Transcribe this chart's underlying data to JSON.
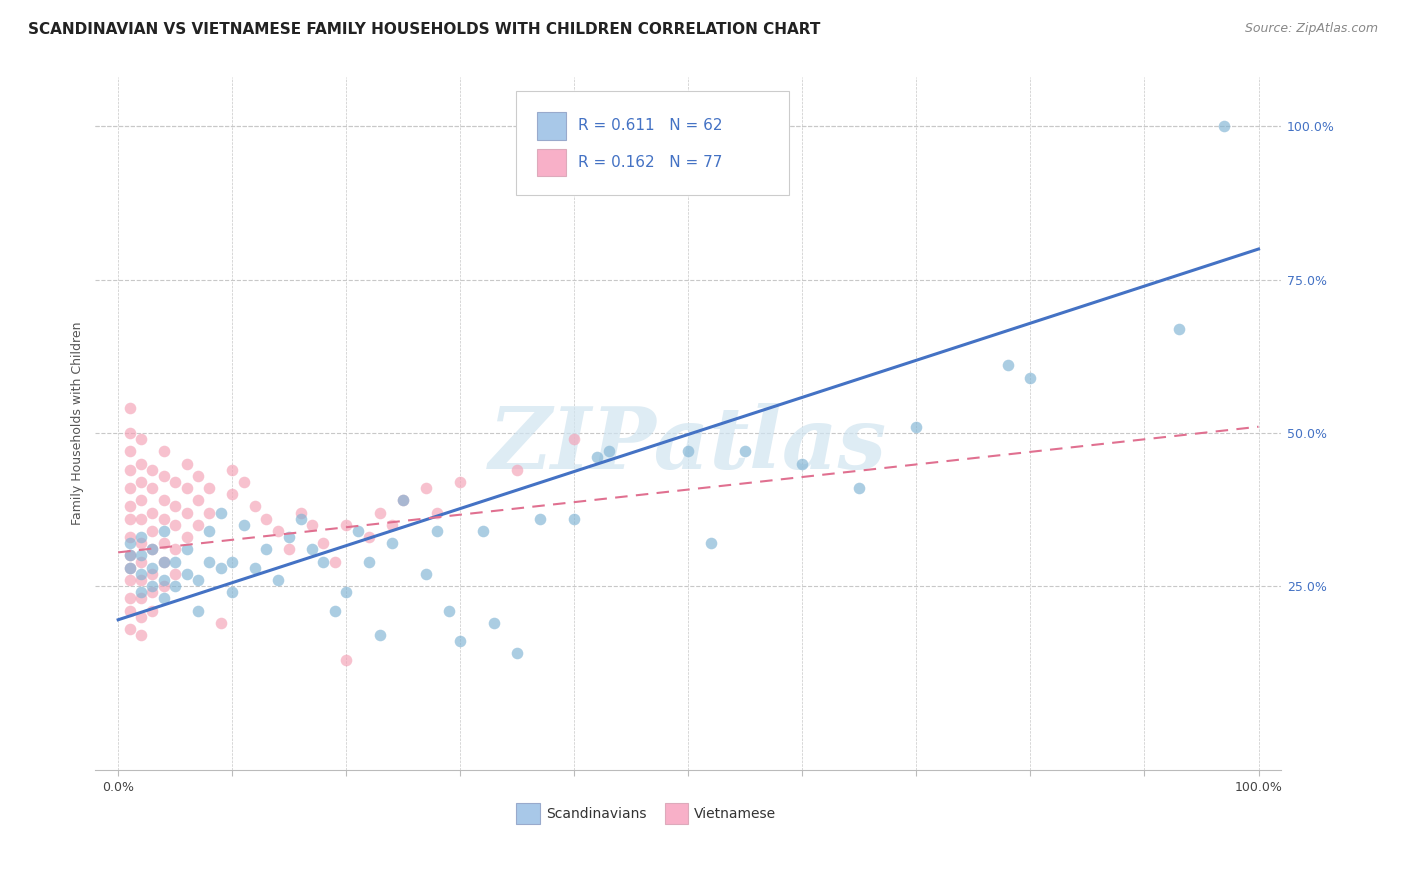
{
  "title": "SCANDINAVIAN VS VIETNAMESE FAMILY HOUSEHOLDS WITH CHILDREN CORRELATION CHART",
  "source": "Source: ZipAtlas.com",
  "ylabel": "Family Households with Children",
  "xlim": [
    -0.02,
    1.02
  ],
  "ylim": [
    -0.05,
    1.08
  ],
  "xtick_vals": [
    0.0,
    0.1,
    0.2,
    0.3,
    0.4,
    0.5,
    0.6,
    0.7,
    0.8,
    0.9,
    1.0
  ],
  "xtick_labels_sparse": {
    "0.0": "0.0%",
    "0.5": "",
    "1.0": "100.0%"
  },
  "ytick_vals": [
    0.25,
    0.5,
    0.75,
    1.0
  ],
  "ytick_labels": [
    "25.0%",
    "50.0%",
    "75.0%",
    "100.0%"
  ],
  "scand_color": "#7fb3d3",
  "viet_color": "#f4a0b5",
  "scand_line_color": "#4472c4",
  "viet_line_color": "#e07090",
  "watermark": "ZIPatlas",
  "background_color": "#ffffff",
  "grid_color": "#c8c8c8",
  "scand_scatter": [
    [
      0.01,
      0.28
    ],
    [
      0.01,
      0.3
    ],
    [
      0.01,
      0.32
    ],
    [
      0.02,
      0.24
    ],
    [
      0.02,
      0.27
    ],
    [
      0.02,
      0.3
    ],
    [
      0.02,
      0.33
    ],
    [
      0.03,
      0.25
    ],
    [
      0.03,
      0.28
    ],
    [
      0.03,
      0.31
    ],
    [
      0.04,
      0.23
    ],
    [
      0.04,
      0.26
    ],
    [
      0.04,
      0.29
    ],
    [
      0.04,
      0.34
    ],
    [
      0.05,
      0.25
    ],
    [
      0.05,
      0.29
    ],
    [
      0.06,
      0.27
    ],
    [
      0.06,
      0.31
    ],
    [
      0.07,
      0.21
    ],
    [
      0.07,
      0.26
    ],
    [
      0.08,
      0.29
    ],
    [
      0.08,
      0.34
    ],
    [
      0.09,
      0.28
    ],
    [
      0.09,
      0.37
    ],
    [
      0.1,
      0.24
    ],
    [
      0.1,
      0.29
    ],
    [
      0.11,
      0.35
    ],
    [
      0.12,
      0.28
    ],
    [
      0.13,
      0.31
    ],
    [
      0.14,
      0.26
    ],
    [
      0.15,
      0.33
    ],
    [
      0.16,
      0.36
    ],
    [
      0.17,
      0.31
    ],
    [
      0.18,
      0.29
    ],
    [
      0.19,
      0.21
    ],
    [
      0.2,
      0.24
    ],
    [
      0.21,
      0.34
    ],
    [
      0.22,
      0.29
    ],
    [
      0.23,
      0.17
    ],
    [
      0.24,
      0.32
    ],
    [
      0.25,
      0.39
    ],
    [
      0.27,
      0.27
    ],
    [
      0.28,
      0.34
    ],
    [
      0.29,
      0.21
    ],
    [
      0.3,
      0.16
    ],
    [
      0.32,
      0.34
    ],
    [
      0.33,
      0.19
    ],
    [
      0.35,
      0.14
    ],
    [
      0.37,
      0.36
    ],
    [
      0.4,
      0.36
    ],
    [
      0.42,
      0.46
    ],
    [
      0.43,
      0.47
    ],
    [
      0.5,
      0.47
    ],
    [
      0.52,
      0.32
    ],
    [
      0.55,
      0.47
    ],
    [
      0.6,
      0.45
    ],
    [
      0.65,
      0.41
    ],
    [
      0.7,
      0.51
    ],
    [
      0.78,
      0.61
    ],
    [
      0.8,
      0.59
    ],
    [
      0.93,
      0.67
    ],
    [
      0.97,
      1.0
    ]
  ],
  "viet_scatter": [
    [
      0.01,
      0.54
    ],
    [
      0.01,
      0.5
    ],
    [
      0.01,
      0.47
    ],
    [
      0.01,
      0.44
    ],
    [
      0.01,
      0.41
    ],
    [
      0.01,
      0.38
    ],
    [
      0.01,
      0.36
    ],
    [
      0.01,
      0.33
    ],
    [
      0.01,
      0.3
    ],
    [
      0.01,
      0.28
    ],
    [
      0.01,
      0.26
    ],
    [
      0.01,
      0.23
    ],
    [
      0.01,
      0.21
    ],
    [
      0.01,
      0.18
    ],
    [
      0.02,
      0.49
    ],
    [
      0.02,
      0.45
    ],
    [
      0.02,
      0.42
    ],
    [
      0.02,
      0.39
    ],
    [
      0.02,
      0.36
    ],
    [
      0.02,
      0.32
    ],
    [
      0.02,
      0.29
    ],
    [
      0.02,
      0.26
    ],
    [
      0.02,
      0.23
    ],
    [
      0.02,
      0.2
    ],
    [
      0.02,
      0.17
    ],
    [
      0.03,
      0.44
    ],
    [
      0.03,
      0.41
    ],
    [
      0.03,
      0.37
    ],
    [
      0.03,
      0.34
    ],
    [
      0.03,
      0.31
    ],
    [
      0.03,
      0.27
    ],
    [
      0.03,
      0.24
    ],
    [
      0.03,
      0.21
    ],
    [
      0.04,
      0.47
    ],
    [
      0.04,
      0.43
    ],
    [
      0.04,
      0.39
    ],
    [
      0.04,
      0.36
    ],
    [
      0.04,
      0.32
    ],
    [
      0.04,
      0.29
    ],
    [
      0.04,
      0.25
    ],
    [
      0.05,
      0.42
    ],
    [
      0.05,
      0.38
    ],
    [
      0.05,
      0.35
    ],
    [
      0.05,
      0.31
    ],
    [
      0.05,
      0.27
    ],
    [
      0.06,
      0.45
    ],
    [
      0.06,
      0.41
    ],
    [
      0.06,
      0.37
    ],
    [
      0.06,
      0.33
    ],
    [
      0.07,
      0.43
    ],
    [
      0.07,
      0.39
    ],
    [
      0.07,
      0.35
    ],
    [
      0.08,
      0.41
    ],
    [
      0.08,
      0.37
    ],
    [
      0.09,
      0.19
    ],
    [
      0.1,
      0.44
    ],
    [
      0.1,
      0.4
    ],
    [
      0.11,
      0.42
    ],
    [
      0.12,
      0.38
    ],
    [
      0.13,
      0.36
    ],
    [
      0.14,
      0.34
    ],
    [
      0.15,
      0.31
    ],
    [
      0.16,
      0.37
    ],
    [
      0.17,
      0.35
    ],
    [
      0.18,
      0.32
    ],
    [
      0.19,
      0.29
    ],
    [
      0.2,
      0.35
    ],
    [
      0.2,
      0.13
    ],
    [
      0.22,
      0.33
    ],
    [
      0.23,
      0.37
    ],
    [
      0.24,
      0.35
    ],
    [
      0.25,
      0.39
    ],
    [
      0.27,
      0.41
    ],
    [
      0.28,
      0.37
    ],
    [
      0.3,
      0.42
    ],
    [
      0.35,
      0.44
    ],
    [
      0.4,
      0.49
    ]
  ],
  "scand_line": {
    "x0": 0.0,
    "y0": 0.195,
    "x1": 1.0,
    "y1": 0.8
  },
  "viet_line": {
    "x0": 0.0,
    "y0": 0.305,
    "x1": 1.0,
    "y1": 0.51
  },
  "title_fontsize": 11,
  "label_fontsize": 9,
  "tick_fontsize": 9,
  "legend_R1": "R = 0.611",
  "legend_N1": "N = 62",
  "legend_R2": "R = 0.162",
  "legend_N2": "N = 77",
  "legend_color1": "#a8c8e8",
  "legend_color2": "#f8b0c8",
  "legend_text_color": "#4472c4",
  "bottom_label1": "Scandinavians",
  "bottom_label2": "Vietnamese"
}
